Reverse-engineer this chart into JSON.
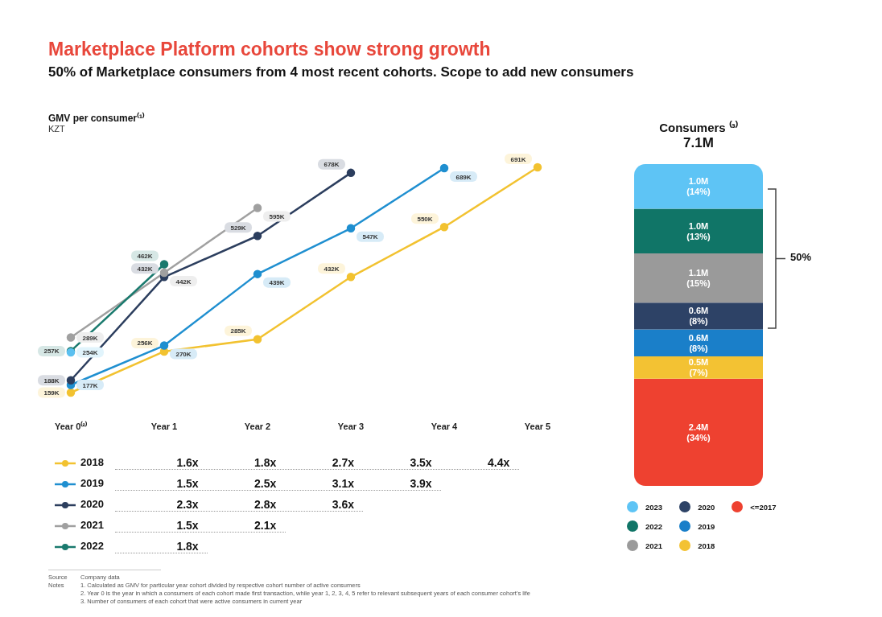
{
  "chart_data": [
    {
      "type": "line",
      "title": "Marketplace Platform cohorts show strong growth",
      "subtitle": "50% of Marketplace consumers from 4 most recent cohorts. Scope to add new consumers",
      "ylabel": "GMV per consumer⁽¹⁾",
      "categories": [
        "Year 0⁽²⁾",
        "Year 1",
        "Year 2",
        "Year 3",
        "Year 4",
        "Year 5"
      ],
      "marker": "circle",
      "legend": "bottom",
      "series": [
        {
          "name": "2018",
          "color": "#f2c230",
          "values": [
            159,
            256,
            285,
            432,
            550,
            691
          ],
          "value_labels": [
            "159K",
            "256K",
            "285K",
            "432K",
            "550K",
            "691K"
          ]
        },
        {
          "name": "2019",
          "color": "#1f8fd0",
          "values": [
            177,
            270,
            439,
            547,
            689,
            null
          ],
          "value_labels": [
            "177K",
            "270K",
            "439K",
            "547K",
            "689K",
            null
          ]
        },
        {
          "name": "2020",
          "color": "#2c3e5e",
          "values": [
            188,
            432,
            529,
            678,
            null,
            null
          ],
          "value_labels": [
            "188K",
            "432K",
            "529K",
            "678K",
            null,
            null
          ]
        },
        {
          "name": "2021",
          "color": "#a0a0a0",
          "values": [
            289,
            442,
            595,
            null,
            null,
            null
          ],
          "value_labels": [
            "289K",
            "442K",
            "595K",
            null,
            null,
            null
          ]
        },
        {
          "name": "2022",
          "color": "#1a7a6e",
          "values": [
            257,
            462,
            null,
            null,
            null,
            null
          ],
          "value_labels": [
            "257K",
            "462K",
            null,
            null,
            null,
            null
          ]
        },
        {
          "color": "#5bc0f0",
          "values": [
            254,
            null,
            null,
            null,
            null,
            null
          ],
          "value_labels": [
            "254K",
            null,
            null,
            null,
            null,
            null
          ]
        }
      ],
      "annotations": [
        "KZT",
        "Source",
        "Company data",
        "Notes",
        "1. Calculated as GMV for particular year cohort divided by respective cohort number of active consumers",
        "2. Year 0 is the year in which a consumers of each cohort made first transaction, while year 1, 2, 3, 4, 5 refer to relevant subsequent years of each consumer cohort's life",
        "3. Number of consumers of each cohort that were active consumers in current year"
      ]
    },
    {
      "type": "other",
      "annotations": [
        "1.6x",
        "1.8x",
        "2.7x",
        "3.5x",
        "4.4x",
        "1.5x",
        "2.5x",
        "3.1x",
        "3.9x",
        "2.3x",
        "2.8x",
        "3.6x",
        "1.5x",
        "2.1x",
        "1.8x"
      ]
    },
    {
      "type": "bar",
      "stacked": true,
      "title": "Consumers ⁽³⁾",
      "subtitle": "7.1M",
      "categories": [
        null
      ],
      "legend": "bottom",
      "series": [
        {
          "name": "<=2017",
          "color": "#ee4130",
          "values": [
            2.4
          ],
          "value_labels": [
            "2.4M"
          ]
        },
        {
          "name": "2018",
          "color": "#f3c233",
          "values": [
            0.5
          ],
          "value_labels": [
            "0.5M"
          ]
        },
        {
          "name": "2019",
          "color": "#1a7fc9",
          "values": [
            0.6
          ],
          "value_labels": [
            "0.6M"
          ]
        },
        {
          "name": "2020",
          "color": "#2d4266",
          "values": [
            0.6
          ],
          "value_labels": [
            "0.6M"
          ]
        },
        {
          "name": "2021",
          "color": "#9a9a9a",
          "values": [
            1.1
          ],
          "value_labels": [
            "1.1M"
          ]
        },
        {
          "name": "2022",
          "color": "#107567",
          "values": [
            1.0
          ],
          "value_labels": [
            "1.0M"
          ]
        },
        {
          "name": "2023",
          "color": "#5ec4f5",
          "values": [
            1.0
          ],
          "value_labels": [
            "1.0M"
          ]
        }
      ],
      "annotations": [
        "50%",
        "(34%)",
        "(7%)",
        "(8%)",
        "(8%)",
        "(15%)",
        "(13%)",
        "(14%)"
      ]
    }
  ]
}
